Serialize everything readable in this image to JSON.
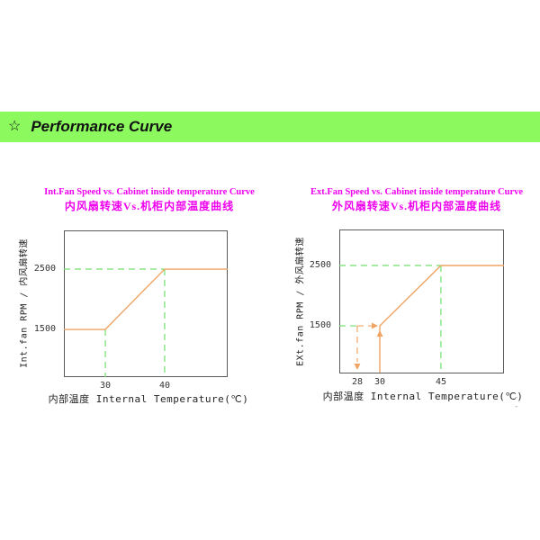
{
  "header": {
    "star": "☆",
    "title": "Performance Curve"
  },
  "colors": {
    "header_bg": "#8CFA5F",
    "title_magenta": "#EE00EE",
    "curve_orange": "#F0A464",
    "guide_green": "#6EE16E",
    "axis_gray": "#5a5a5a"
  },
  "stray_marks": "- -",
  "charts": [
    {
      "title_en": "Int.Fan Speed vs. Cabinet inside temperature Curve",
      "title_zh": "内风扇转速Vs.机柜内部温度曲线",
      "y_axis_label": "Int.fan RPM / 内风扇转速",
      "x_axis_label": "内部温度 Internal Temperature(℃)",
      "y_ticks": [
        {
          "label": "2500"
        },
        {
          "label": "1500"
        }
      ],
      "x_ticks": [
        {
          "label": "30"
        },
        {
          "label": "40"
        }
      ],
      "render": {
        "solid_path": [
          [
            0,
            0.675
          ],
          [
            0.253,
            0.675
          ],
          [
            0.615,
            0.264
          ],
          [
            1,
            0.264
          ]
        ],
        "guides": [
          {
            "o": "h",
            "p": 0.264,
            "a": 0,
            "b": 0.615,
            "color": "green",
            "name": "guide-2500rpm"
          },
          {
            "o": "v",
            "p": 0.253,
            "a": 0.675,
            "b": 1,
            "color": "green",
            "name": "guide-30c"
          },
          {
            "o": "v",
            "p": 0.615,
            "a": 0.264,
            "b": 1,
            "color": "green",
            "name": "guide-40c"
          }
        ],
        "arrows": []
      }
    },
    {
      "title_en": "Ext.Fan Speed vs. Cabinet inside temperature Curve",
      "title_zh": "外风扇转速Vs.机柜内部温度曲线",
      "y_axis_label": "EXt.fan RPM / 外风扇转速",
      "x_axis_label": "内部温度 Internal Temperature(℃)",
      "y_ticks": [
        {
          "label": "2500"
        },
        {
          "label": "1500"
        }
      ],
      "x_ticks": [
        {
          "label": "28"
        },
        {
          "label": "30"
        },
        {
          "label": "45"
        }
      ],
      "render": {
        "solid_path": [
          [
            0.246,
            0.995
          ],
          [
            0.246,
            0.669
          ],
          [
            0.617,
            0.25
          ],
          [
            1,
            0.25
          ]
        ],
        "guides": [
          {
            "o": "h",
            "p": 0.25,
            "a": 0,
            "b": 0.617,
            "color": "green",
            "name": "guide-2500rpm"
          },
          {
            "o": "h",
            "p": 0.669,
            "a": 0,
            "b": 0.109,
            "color": "green",
            "name": "guide-1500rpm"
          },
          {
            "o": "v",
            "p": 0.617,
            "a": 0.25,
            "b": 1,
            "color": "green",
            "name": "guide-45c"
          },
          {
            "o": "v",
            "p": 0.109,
            "a": 0.669,
            "b": 0.92,
            "color": "orange",
            "name": "hysteresis-off-28c"
          },
          {
            "o": "h",
            "p": 0.669,
            "a": 0.109,
            "b": 0.2,
            "color": "orange",
            "name": "hysteresis-28-to-30"
          }
        ],
        "arrows": [
          {
            "fx": 0.246,
            "fy": 0.7,
            "dir": "up",
            "name": "fan-on-up-arrow"
          },
          {
            "fx": 0.109,
            "fy": 0.975,
            "dir": "down",
            "name": "fan-off-down-arrow"
          },
          {
            "fx": 0.235,
            "fy": 0.669,
            "dir": "right",
            "name": "hysteresis-right-arrow"
          }
        ]
      }
    }
  ],
  "chart_data": [
    {
      "type": "line",
      "title": "Int.Fan Speed vs. Cabinet inside temperature Curve",
      "title_zh": "内风扇转速Vs.机柜内部温度曲线",
      "xlabel": "内部温度 Internal Temperature(℃)",
      "ylabel": "Int.fan RPM / 内风扇转速",
      "x_ticks": [
        30,
        40
      ],
      "y_ticks": [
        1500,
        2500
      ],
      "xlim": [
        23,
        51
      ],
      "ylim": [
        700,
        3150
      ],
      "grid": false,
      "series": [
        {
          "name": "Int.fan RPM",
          "points": [
            [
              23,
              1500
            ],
            [
              30,
              1500
            ],
            [
              40,
              2500
            ],
            [
              51,
              2500
            ]
          ]
        }
      ],
      "annotations": [
        "green dashed guides: 30℃ → 1500 RPM, 40℃ → 2500 RPM"
      ]
    },
    {
      "type": "line",
      "title": "Ext.Fan Speed vs. Cabinet inside temperature Curve",
      "title_zh": "外风扇转速Vs.机柜内部温度曲线",
      "xlabel": "内部温度 Internal Temperature(℃)",
      "ylabel": "EXt.fan RPM / 外风扇转速",
      "x_ticks": [
        28,
        30,
        45
      ],
      "y_ticks": [
        1500,
        2500
      ],
      "grid": false,
      "series": [
        {
          "name": "Ext.fan RPM",
          "points": [
            [
              30,
              0
            ],
            [
              30,
              1500
            ],
            [
              45,
              2500
            ],
            [
              56,
              2500
            ]
          ]
        }
      ],
      "annotations": [
        "fan starts at 30℃ (jump 0 → 1500 RPM, solid line with up arrow)",
        "fan stops at 28℃ on falling temperature (orange dashed hysteresis path with down arrow)",
        "green dashed guides: 45℃ → 2500 RPM, 1500 RPM level"
      ]
    }
  ]
}
